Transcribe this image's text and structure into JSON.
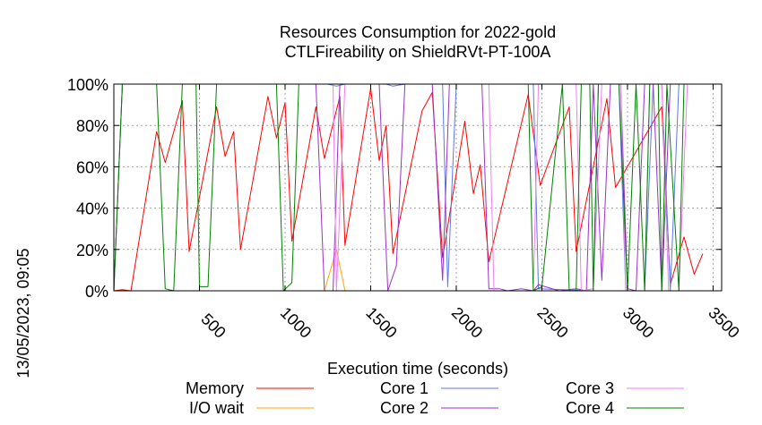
{
  "chart_data": {
    "type": "line",
    "title": "Resources Consumption for 2022-gold",
    "subtitle": "CTLFireability on ShieldRVt-PT-100A",
    "xlabel": "Execution time (seconds)",
    "side_label": "13/05/2023, 09:05",
    "xlim": [
      0,
      3550
    ],
    "ylim": [
      0,
      100
    ],
    "x_ticks": [
      500,
      1000,
      1500,
      2000,
      2500,
      3000,
      3500
    ],
    "y_ticks": [
      0,
      20,
      40,
      60,
      80,
      100
    ],
    "y_tick_labels": [
      "0%",
      "20%",
      "40%",
      "60%",
      "80%",
      "100%"
    ],
    "grid": true,
    "legend_position": "bottom",
    "series": [
      {
        "name": "Memory",
        "color": "#ff0000",
        "points": [
          [
            0,
            0
          ],
          [
            50,
            0.5
          ],
          [
            100,
            0
          ],
          [
            250,
            77
          ],
          [
            300,
            62
          ],
          [
            400,
            92
          ],
          [
            440,
            19
          ],
          [
            600,
            89
          ],
          [
            650,
            65
          ],
          [
            700,
            77
          ],
          [
            740,
            20
          ],
          [
            900,
            94
          ],
          [
            950,
            74
          ],
          [
            1000,
            91
          ],
          [
            1040,
            24
          ],
          [
            1180,
            89
          ],
          [
            1230,
            64
          ],
          [
            1320,
            94
          ],
          [
            1350,
            22
          ],
          [
            1500,
            98
          ],
          [
            1550,
            63
          ],
          [
            1590,
            80
          ],
          [
            1630,
            18
          ],
          [
            1800,
            87
          ],
          [
            1860,
            96
          ],
          [
            1920,
            16
          ],
          [
            2050,
            82
          ],
          [
            2100,
            47
          ],
          [
            2140,
            61
          ],
          [
            2190,
            14
          ],
          [
            2420,
            95
          ],
          [
            2490,
            51
          ],
          [
            2660,
            89
          ],
          [
            2700,
            19
          ],
          [
            2880,
            93
          ],
          [
            2930,
            50
          ],
          [
            3200,
            89
          ],
          [
            3250,
            3
          ],
          [
            3330,
            26
          ],
          [
            3390,
            8
          ],
          [
            3440,
            18
          ]
        ]
      },
      {
        "name": "I/O wait",
        "color": "#ffa500",
        "points": [
          [
            0,
            0
          ],
          [
            1230,
            0
          ],
          [
            1300,
            20
          ],
          [
            1350,
            0
          ],
          [
            3440,
            0
          ]
        ]
      },
      {
        "name": "Core 1",
        "color": "#5b78e8",
        "points": [
          [
            0,
            0
          ],
          [
            50,
            100
          ],
          [
            1250,
            100
          ],
          [
            1300,
            99
          ],
          [
            1350,
            100
          ],
          [
            1590,
            100
          ],
          [
            1630,
            99
          ],
          [
            1700,
            100
          ],
          [
            1920,
            100
          ],
          [
            1950,
            2
          ],
          [
            2000,
            100
          ],
          [
            2450,
            100
          ],
          [
            2480,
            1
          ],
          [
            2800,
            0
          ],
          [
            2830,
            100
          ],
          [
            2950,
            100
          ],
          [
            2990,
            0
          ],
          [
            3100,
            0
          ],
          [
            3150,
            100
          ],
          [
            3200,
            100
          ],
          [
            3250,
            0
          ],
          [
            3300,
            100
          ],
          [
            3440,
            100
          ]
        ]
      },
      {
        "name": "Core 2",
        "color": "#9932cc",
        "points": [
          [
            0,
            0
          ],
          [
            50,
            100
          ],
          [
            1180,
            100
          ],
          [
            1230,
            0
          ],
          [
            1280,
            0
          ],
          [
            1320,
            100
          ],
          [
            1550,
            100
          ],
          [
            1600,
            0
          ],
          [
            1650,
            12
          ],
          [
            1700,
            100
          ],
          [
            1860,
            100
          ],
          [
            1920,
            5
          ],
          [
            1960,
            100
          ],
          [
            2150,
            100
          ],
          [
            2190,
            1
          ],
          [
            2250,
            1
          ],
          [
            2300,
            0
          ],
          [
            2380,
            1
          ],
          [
            2450,
            0
          ],
          [
            2480,
            3
          ],
          [
            2600,
            0
          ],
          [
            2700,
            1
          ],
          [
            2760,
            0
          ],
          [
            2800,
            100
          ],
          [
            2850,
            5
          ],
          [
            2900,
            100
          ],
          [
            2960,
            100
          ],
          [
            3000,
            1
          ],
          [
            3050,
            0
          ],
          [
            3100,
            100
          ],
          [
            3150,
            100
          ],
          [
            3200,
            0
          ],
          [
            3250,
            100
          ],
          [
            3440,
            100
          ]
        ]
      },
      {
        "name": "Core 3",
        "color": "#ee82ee",
        "points": [
          [
            0,
            0
          ],
          [
            50,
            100
          ],
          [
            1280,
            100
          ],
          [
            1300,
            0
          ],
          [
            1350,
            100
          ],
          [
            2190,
            100
          ],
          [
            2220,
            0
          ],
          [
            2450,
            0
          ],
          [
            2480,
            100
          ],
          [
            2700,
            100
          ],
          [
            2730,
            0
          ],
          [
            2800,
            1
          ],
          [
            2850,
            100
          ],
          [
            2960,
            100
          ],
          [
            2990,
            0
          ],
          [
            3100,
            0
          ],
          [
            3130,
            100
          ],
          [
            3200,
            100
          ],
          [
            3240,
            0
          ],
          [
            3300,
            0
          ],
          [
            3350,
            100
          ],
          [
            3440,
            100
          ]
        ]
      },
      {
        "name": "Core 4",
        "color": "#008000",
        "points": [
          [
            0,
            0
          ],
          [
            50,
            100
          ],
          [
            250,
            100
          ],
          [
            300,
            1
          ],
          [
            350,
            0
          ],
          [
            400,
            100
          ],
          [
            480,
            100
          ],
          [
            500,
            2
          ],
          [
            550,
            2
          ],
          [
            600,
            100
          ],
          [
            950,
            100
          ],
          [
            990,
            0
          ],
          [
            1040,
            4
          ],
          [
            1080,
            100
          ],
          [
            2420,
            100
          ],
          [
            2450,
            0
          ],
          [
            2500,
            2
          ],
          [
            2620,
            100
          ],
          [
            2660,
            0
          ],
          [
            2700,
            0
          ],
          [
            2730,
            100
          ],
          [
            2780,
            100
          ],
          [
            2800,
            0
          ],
          [
            2830,
            100
          ],
          [
            2950,
            100
          ],
          [
            3000,
            0
          ],
          [
            3050,
            100
          ],
          [
            3100,
            0
          ],
          [
            3130,
            100
          ],
          [
            3180,
            100
          ],
          [
            3200,
            0
          ],
          [
            3230,
            100
          ],
          [
            3300,
            0
          ],
          [
            3330,
            100
          ],
          [
            3440,
            100
          ]
        ]
      }
    ]
  }
}
